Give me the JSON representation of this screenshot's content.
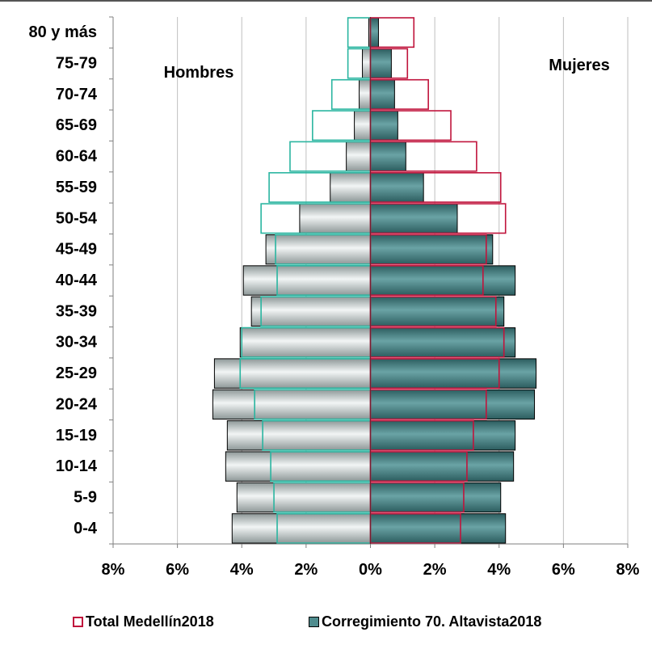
{
  "chart_data": {
    "type": "bar",
    "orientation": "horizontal-population-pyramid",
    "categories": [
      "0-4",
      "5-9",
      "10-14",
      "15-19",
      "20-24",
      "25-29",
      "30-34",
      "35-39",
      "40-44",
      "45-49",
      "50-54",
      "55-59",
      "60-64",
      "65-69",
      "70-74",
      "75-79",
      "80 y más"
    ],
    "series": [
      {
        "name": "Total Medellín2018",
        "style": "outline",
        "men": [
          2.9,
          3.0,
          3.1,
          3.35,
          3.6,
          4.05,
          4.0,
          3.4,
          2.9,
          2.95,
          3.4,
          3.15,
          2.5,
          1.8,
          1.2,
          0.7,
          0.7
        ],
        "women": [
          2.8,
          2.9,
          3.0,
          3.2,
          3.6,
          4.0,
          4.15,
          3.9,
          3.5,
          3.6,
          4.2,
          4.05,
          3.3,
          2.5,
          1.8,
          1.15,
          1.35
        ]
      },
      {
        "name": "Corregimiento 70. Altavista2018",
        "style": "filled",
        "men": [
          4.3,
          4.15,
          4.5,
          4.45,
          4.9,
          4.85,
          4.05,
          3.7,
          3.95,
          3.25,
          2.2,
          1.25,
          0.75,
          0.5,
          0.35,
          0.25,
          0.05
        ],
        "women": [
          4.2,
          4.05,
          4.45,
          4.5,
          5.1,
          5.15,
          4.5,
          4.15,
          4.5,
          3.8,
          2.7,
          1.65,
          1.1,
          0.85,
          0.75,
          0.65,
          0.25
        ]
      }
    ],
    "x_ticks": [
      "8%",
      "6%",
      "4%",
      "2%",
      "0%",
      "2%",
      "4%",
      "6%",
      "8%"
    ],
    "xlim": [
      -8,
      8
    ],
    "grid": "vertical",
    "annotations": {
      "left": "Hombres",
      "right": "Mujeres"
    },
    "legend_position": "bottom",
    "colors": {
      "total_men_outline": "#2ab5a0",
      "total_women_outline": "#c0143c",
      "altavista_men_fill": "#c6cfcf",
      "altavista_women_fill": "#4f8c8e",
      "grid": "#bfbfbf"
    }
  },
  "legend": {
    "total_label": "Total Medellín2018",
    "altavista_label": "Corregimiento 70. Altavista2018"
  }
}
